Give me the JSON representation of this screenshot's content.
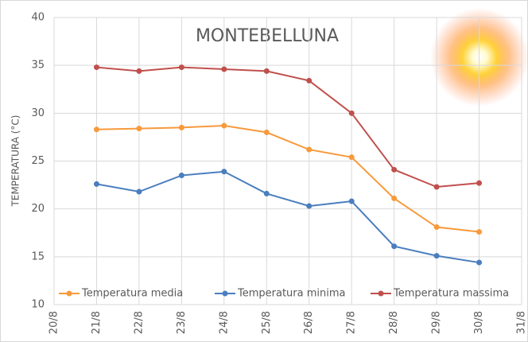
{
  "chart_data": {
    "type": "line",
    "title": "MONTEBELLUNA",
    "y_label": "TEMPERATURA (°C)",
    "categories": [
      "20/8",
      "21/8",
      "22/8",
      "23/8",
      "24/8",
      "25/8",
      "26/8",
      "27/8",
      "28/8",
      "29/8",
      "30/8",
      "31/8"
    ],
    "series": [
      {
        "name": "Temperatura media",
        "color": "#f79a3c",
        "values": [
          null,
          28.3,
          28.4,
          28.5,
          28.7,
          28.0,
          26.2,
          25.4,
          21.1,
          18.1,
          17.6,
          null
        ]
      },
      {
        "name": "Temperatura minima",
        "color": "#4a7ebf",
        "values": [
          null,
          22.6,
          21.8,
          23.5,
          23.9,
          21.6,
          20.3,
          20.8,
          16.1,
          15.1,
          14.4,
          null
        ]
      },
      {
        "name": "Temperatura massima",
        "color": "#c0504d",
        "values": [
          null,
          34.8,
          34.4,
          34.8,
          34.6,
          34.4,
          33.4,
          30.0,
          24.1,
          22.3,
          22.7,
          null
        ]
      }
    ],
    "ylim": [
      10,
      40
    ],
    "yticks": [
      10,
      15,
      20,
      25,
      30,
      35,
      40
    ],
    "grid": true
  }
}
